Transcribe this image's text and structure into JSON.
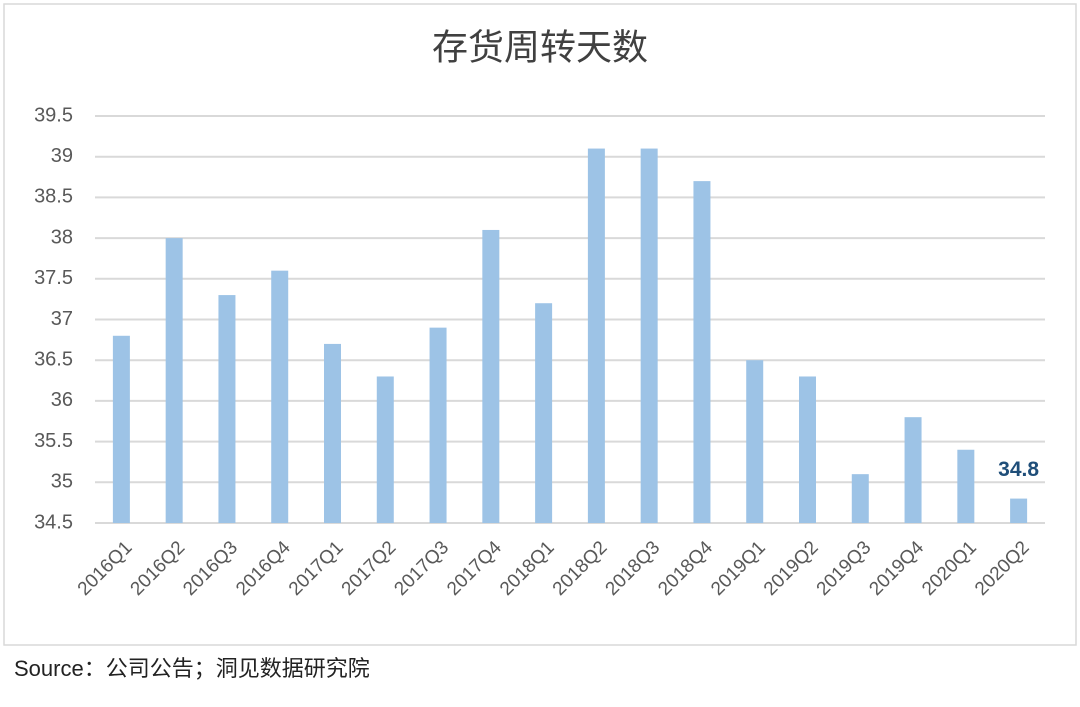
{
  "chart_data": {
    "type": "bar",
    "title": "存货周转天数",
    "categories": [
      "2016Q1",
      "2016Q2",
      "2016Q3",
      "2016Q4",
      "2017Q1",
      "2017Q2",
      "2017Q3",
      "2017Q4",
      "2018Q1",
      "2018Q2",
      "2018Q3",
      "2018Q4",
      "2019Q1",
      "2019Q2",
      "2019Q3",
      "2019Q4",
      "2020Q1",
      "2020Q2"
    ],
    "values": [
      36.8,
      38.0,
      37.3,
      37.6,
      36.7,
      36.3,
      36.9,
      38.1,
      37.2,
      39.1,
      39.1,
      38.7,
      36.5,
      36.3,
      35.1,
      35.8,
      35.4,
      34.8
    ],
    "value_labels": [
      null,
      null,
      null,
      null,
      null,
      null,
      null,
      null,
      null,
      null,
      null,
      null,
      null,
      null,
      null,
      null,
      null,
      "34.8"
    ],
    "color": "#9dc3e6",
    "ylim": [
      34.5,
      39.5
    ],
    "yticks": [
      34.5,
      35,
      35.5,
      36,
      36.5,
      37,
      37.5,
      38,
      38.5,
      39,
      39.5
    ],
    "grid": true
  },
  "source": "Source：公司公告；洞见数据研究院"
}
